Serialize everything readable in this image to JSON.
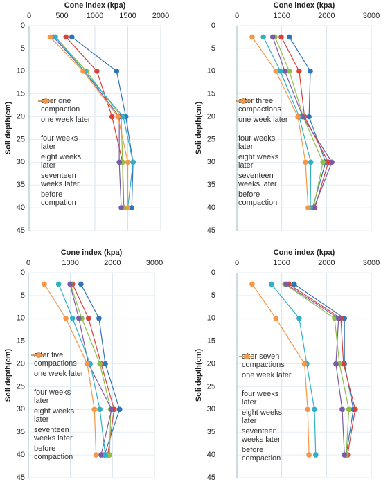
{
  "chart_data": [
    {
      "type": "line",
      "title": "Cone index (kpa)",
      "y_label": "Soli depth(cm)",
      "xlim": [
        0,
        2000
      ],
      "xticks": [
        0,
        500,
        1000,
        1500,
        2000
      ],
      "ylim": [
        45,
        0
      ],
      "yticks": [
        0,
        5,
        10,
        15,
        20,
        25,
        30,
        35,
        40,
        45
      ],
      "y": [
        2.5,
        10,
        20,
        30,
        40
      ],
      "grid": true,
      "series": [
        {
          "name": "after one compaction",
          "color": "#2e75b6",
          "values": [
            650,
            1330,
            1470,
            1580,
            1560
          ]
        },
        {
          "name": "one week later",
          "color": "#d9413b",
          "values": [
            560,
            1030,
            1260,
            1420,
            1440
          ]
        },
        {
          "name": "four weeks later",
          "color": "#8cbf4a",
          "values": [
            400,
            870,
            1400,
            1420,
            1430
          ]
        },
        {
          "name": "eight weeks later",
          "color": "#7b5aa6",
          "values": [
            370,
            840,
            1370,
            1370,
            1400
          ]
        },
        {
          "name": "seventeen weeks later",
          "color": "#2fb0c6",
          "values": [
            400,
            840,
            1430,
            1580,
            1500
          ]
        },
        {
          "name": "before compation",
          "color": "#f79646",
          "values": [
            320,
            820,
            1350,
            1500,
            1500
          ]
        }
      ]
    },
    {
      "type": "line",
      "title": "Cone index (kpa)",
      "y_label": "Soli depth(cm)",
      "xlim": [
        0,
        3000
      ],
      "xticks": [
        0,
        1000,
        2000,
        3000
      ],
      "ylim": [
        45,
        0
      ],
      "yticks": [
        0,
        5,
        10,
        15,
        20,
        25,
        30,
        35,
        40,
        45
      ],
      "y": [
        2.5,
        10,
        20,
        30,
        40
      ],
      "grid": true,
      "series": [
        {
          "name": "after three compactions",
          "color": "#2e75b6",
          "values": [
            1170,
            1640,
            1610,
            1980,
            1690
          ]
        },
        {
          "name": "one week later",
          "color": "#d9413b",
          "values": [
            990,
            1390,
            1510,
            2040,
            1740
          ]
        },
        {
          "name": "four weeks later",
          "color": "#8cbf4a",
          "values": [
            850,
            1170,
            1480,
            1920,
            1710
          ]
        },
        {
          "name": "eight weeks later",
          "color": "#7b5aa6",
          "values": [
            800,
            1070,
            1470,
            2120,
            1720
          ]
        },
        {
          "name": "seventeen weeks later",
          "color": "#2fb0c6",
          "values": [
            590,
            970,
            1390,
            1650,
            1640
          ]
        },
        {
          "name": "before compaction",
          "color": "#f79646",
          "values": [
            340,
            870,
            1360,
            1530,
            1590
          ]
        }
      ]
    },
    {
      "type": "line",
      "title": "Cone index (kpa)",
      "y_label": "Soli depth(cm)",
      "xlim": [
        0,
        3000
      ],
      "xticks": [
        0,
        1000,
        2000,
        3000
      ],
      "ylim": [
        45,
        0
      ],
      "yticks": [
        0,
        5,
        10,
        15,
        20,
        25,
        30,
        35,
        40,
        45
      ],
      "y": [
        2.5,
        10,
        20,
        30,
        40
      ],
      "grid": true,
      "series": [
        {
          "name": "after five compactions",
          "color": "#2e75b6",
          "values": [
            1250,
            1680,
            1830,
            2170,
            1810
          ]
        },
        {
          "name": "one week later",
          "color": "#d9413b",
          "values": [
            1050,
            1430,
            1730,
            2040,
            1890
          ]
        },
        {
          "name": "four weeks later",
          "color": "#8cbf4a",
          "values": [
            1000,
            1270,
            1700,
            1960,
            1930
          ]
        },
        {
          "name": "eight weeks later",
          "color": "#7b5aa6",
          "values": [
            990,
            1200,
            1430,
            1980,
            1730
          ]
        },
        {
          "name": "seventeen weeks later",
          "color": "#2fb0c6",
          "values": [
            720,
            1050,
            1470,
            1700,
            1830
          ]
        },
        {
          "name": "before compaction",
          "color": "#f79646",
          "values": [
            380,
            890,
            1400,
            1570,
            1610
          ]
        }
      ]
    },
    {
      "type": "line",
      "title": "Cone index (kpa)",
      "y_label": "Soli depth(cm)",
      "xlim": [
        0,
        3000
      ],
      "xticks": [
        0,
        1000,
        2000,
        3000
      ],
      "ylim": [
        45,
        0
      ],
      "yticks": [
        0,
        5,
        10,
        15,
        20,
        25,
        30,
        35,
        40,
        45
      ],
      "y": [
        2.5,
        10,
        20,
        30,
        40
      ],
      "grid": true,
      "series": [
        {
          "name": "after seven compactions",
          "color": "#2e75b6",
          "values": [
            1280,
            2400,
            2400,
            2600,
            2440
          ]
        },
        {
          "name": "one week later",
          "color": "#d9413b",
          "values": [
            1160,
            2320,
            2380,
            2640,
            2470
          ]
        },
        {
          "name": "four weeks later",
          "color": "#8cbf4a",
          "values": [
            1070,
            2180,
            2290,
            2500,
            2440
          ]
        },
        {
          "name": "eight weeks later",
          "color": "#7b5aa6",
          "values": [
            1100,
            2270,
            2210,
            2350,
            2400
          ]
        },
        {
          "name": "seventeen weeks later",
          "color": "#2fb0c6",
          "values": [
            770,
            1390,
            1560,
            1730,
            1760
          ]
        },
        {
          "name": "before compaction",
          "color": "#f79646",
          "values": [
            340,
            870,
            1510,
            1580,
            1610
          ]
        }
      ]
    }
  ]
}
